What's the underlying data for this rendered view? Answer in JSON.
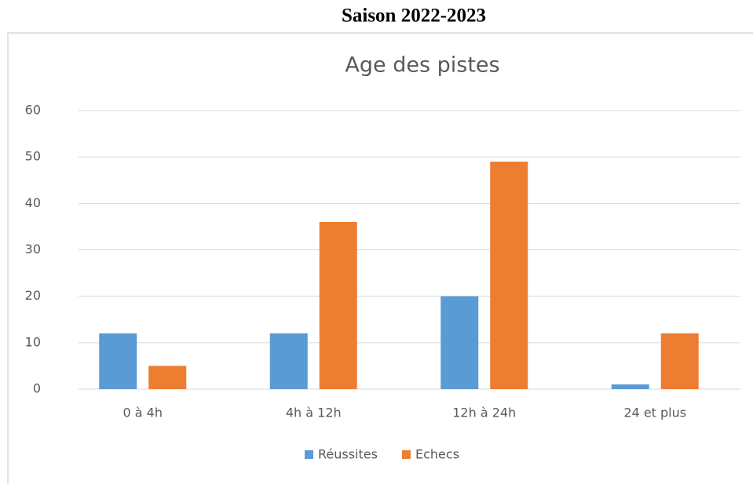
{
  "heading": "Saison 2022-2023",
  "chart_data": {
    "type": "bar",
    "title": "Age des pistes",
    "categories": [
      "0 à 4h",
      "4h à 12h",
      "12h à 24h",
      "24 et plus"
    ],
    "series": [
      {
        "name": "Réussites",
        "color": "#5b9bd5",
        "values": [
          12,
          12,
          20,
          1
        ]
      },
      {
        "name": "Echecs",
        "color": "#ed7d31",
        "values": [
          5,
          36,
          49,
          12
        ]
      }
    ],
    "ylim": [
      0,
      60
    ],
    "yticks": [
      0,
      10,
      20,
      30,
      40,
      50,
      60
    ],
    "grid": true,
    "legend": "bottom"
  }
}
